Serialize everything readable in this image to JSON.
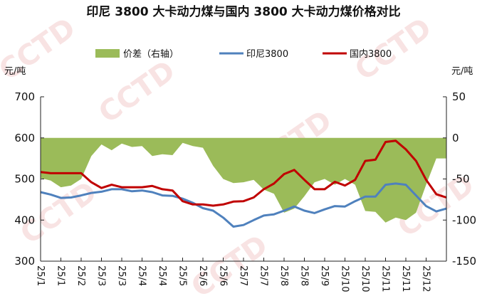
{
  "chart_data": {
    "type": "line",
    "title": "印尼 3800 大卡动力煤与国内 3800 大卡动力煤价格对比",
    "watermark": "CCTD",
    "left_unit": "元/吨",
    "right_unit": "元/吨",
    "ylim_left": [
      300,
      700
    ],
    "yticks_left": [
      300,
      400,
      500,
      600,
      700
    ],
    "ylim_right": [
      -150,
      50
    ],
    "yticks_right": [
      -150,
      -100,
      -50,
      0,
      50
    ],
    "x_tick_labels": [
      "25/1",
      "25/1",
      "25/2",
      "25/3",
      "25/3",
      "25/4",
      "25/4",
      "25/5",
      "25/6",
      "25/6",
      "25/7",
      "25/7",
      "25/8",
      "25/8",
      "25/9",
      "25/10",
      "25/10",
      "25/11",
      "25/11",
      "25/12"
    ],
    "grid": false,
    "legend_position": "top",
    "series": [
      {
        "name": "价差（右轴）",
        "type": "area",
        "axis": "right",
        "color": "#9bbb59",
        "values": [
          -49,
          -52,
          -60,
          -58,
          -50,
          -22,
          -8,
          -15,
          -7,
          -11,
          -10,
          -22,
          -20,
          -21,
          -6,
          -10,
          -12,
          -34,
          -50,
          -55,
          -54,
          -51,
          -63,
          -68,
          -91,
          -86,
          -71,
          -54,
          -50,
          -57,
          -50,
          -57,
          -89,
          -90,
          -103,
          -97,
          -100,
          -91,
          -57,
          -25,
          -25
        ]
      },
      {
        "name": "印尼3800",
        "type": "line",
        "axis": "left",
        "color": "#4f81bd",
        "values": [
          468,
          462,
          454,
          455,
          460,
          466,
          469,
          475,
          475,
          470,
          472,
          468,
          460,
          459,
          452,
          442,
          429,
          423,
          406,
          384,
          388,
          400,
          411,
          414,
          423,
          433,
          423,
          417,
          426,
          434,
          433,
          446,
          457,
          457,
          486,
          489,
          486,
          460,
          434,
          421,
          428
        ]
      },
      {
        "name": "国内3800",
        "type": "line",
        "axis": "left",
        "color": "#c00000",
        "values": [
          517,
          514,
          514,
          514,
          514,
          492,
          478,
          486,
          480,
          480,
          480,
          483,
          475,
          472,
          446,
          438,
          438,
          435,
          438,
          445,
          446,
          455,
          475,
          489,
          512,
          522,
          498,
          475,
          475,
          493,
          484,
          498,
          544,
          547,
          590,
          593,
          572,
          544,
          498,
          463,
          455
        ]
      }
    ]
  }
}
